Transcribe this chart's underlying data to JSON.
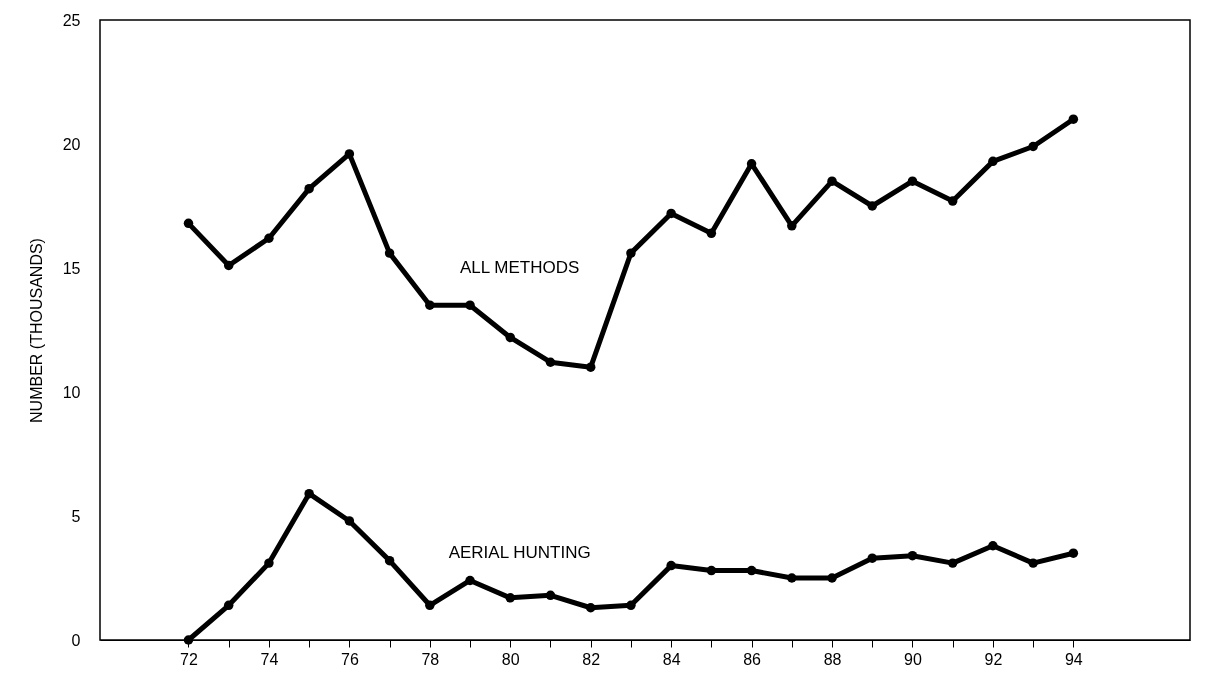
{
  "chart_data": {
    "type": "line",
    "ylabel": "NUMBER (THOUSANDS)",
    "x": [
      72,
      73,
      74,
      75,
      76,
      77,
      78,
      79,
      80,
      81,
      82,
      83,
      84,
      85,
      86,
      87,
      88,
      89,
      90,
      91,
      92,
      93,
      94
    ],
    "series": [
      {
        "name": "ALL METHODS",
        "color": "#000000",
        "values": [
          16.8,
          15.1,
          16.2,
          18.2,
          19.6,
          15.6,
          13.5,
          13.5,
          12.2,
          11.2,
          11.0,
          15.6,
          17.2,
          16.4,
          19.2,
          16.7,
          18.5,
          17.5,
          18.5,
          17.7,
          19.3,
          19.9,
          21.0
        ]
      },
      {
        "name": "AERIAL HUNTING",
        "color": "#000000",
        "values": [
          0,
          1.4,
          3.1,
          5.9,
          4.8,
          3.2,
          1.4,
          2.4,
          1.7,
          1.8,
          1.3,
          1.4,
          3.0,
          2.8,
          2.8,
          2.5,
          2.5,
          3.3,
          3.4,
          3.1,
          3.8,
          3.1,
          3.5
        ]
      }
    ],
    "xlim": [
      69.8,
      96.9
    ],
    "xticks": [
      72,
      {
        "value": 73,
        "label": null
      },
      74,
      {
        "value": 75,
        "label": null
      },
      76,
      {
        "value": 77,
        "label": null
      },
      78,
      {
        "value": 79,
        "label": null
      },
      80,
      {
        "value": 81,
        "label": null
      },
      82,
      {
        "value": 83,
        "label": null
      },
      84,
      {
        "value": 85,
        "label": null
      },
      86,
      {
        "value": 87,
        "label": null
      },
      88,
      {
        "value": 89,
        "label": null
      },
      90,
      {
        "value": 91,
        "label": null
      },
      92,
      {
        "value": 93,
        "label": null
      },
      94
    ],
    "ylim": [
      0,
      25
    ],
    "yticks": [
      0,
      5,
      10,
      15,
      20,
      25
    ],
    "grid": false,
    "legend": false,
    "marker": "circle",
    "line_style": "solid"
  }
}
